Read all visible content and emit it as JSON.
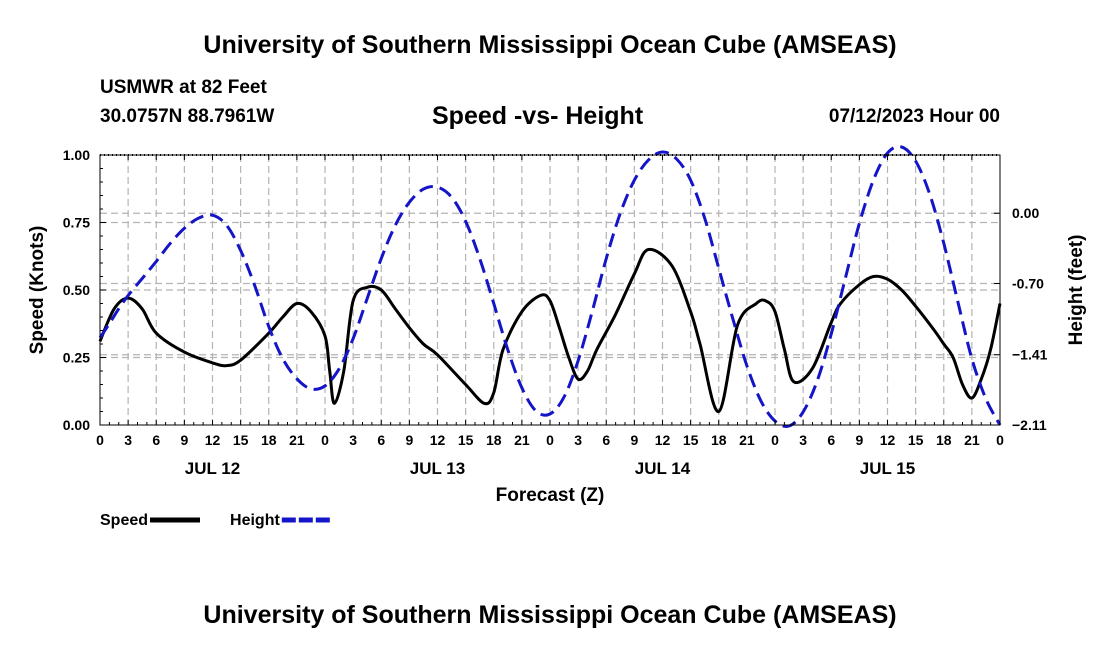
{
  "header": {
    "title": "University of Southern Mississippi Ocean Cube (AMSEAS)",
    "station": "USMWR at 82 Feet",
    "coords": "30.0757N  88.7961W",
    "subtitle": "Speed -vs- Height",
    "datetime": "07/12/2023 Hour 00"
  },
  "footer": {
    "title": "University of Southern Mississippi Ocean Cube (AMSEAS)"
  },
  "colors": {
    "speed": "#000000",
    "height": "#1414c8",
    "grid": "#b4b4b4"
  },
  "chart_data": {
    "type": "line",
    "xlabel": "Forecast (Z)",
    "ylabel_left": "Speed (Knots)",
    "ylabel_right": "Height (feet)",
    "x_range_hours": [
      0,
      96
    ],
    "x_tick_step_hours": 3,
    "x_tick_labels": [
      "0",
      "3",
      "6",
      "9",
      "12",
      "15",
      "18",
      "21",
      "0",
      "3",
      "6",
      "9",
      "12",
      "15",
      "18",
      "21",
      "0",
      "3",
      "6",
      "9",
      "12",
      "15",
      "18",
      "21",
      "0",
      "3",
      "6",
      "9",
      "12",
      "15",
      "18",
      "21",
      "0"
    ],
    "day_labels": [
      {
        "hour": 12,
        "label": "JUL 12"
      },
      {
        "hour": 36,
        "label": "JUL 13"
      },
      {
        "hour": 60,
        "label": "JUL 14"
      },
      {
        "hour": 84,
        "label": "JUL 15"
      }
    ],
    "ylim_left": [
      0,
      1.0
    ],
    "left_ticks": [
      {
        "value": 0.0,
        "label": "0.00"
      },
      {
        "value": 0.25,
        "label": "0.25"
      },
      {
        "value": 0.5,
        "label": "0.50"
      },
      {
        "value": 0.75,
        "label": "0.75"
      },
      {
        "value": 1.0,
        "label": "1.00"
      }
    ],
    "ylim_right": [
      -2.11,
      0.58
    ],
    "right_ticks": [
      {
        "value": 0.0,
        "label": "0.00"
      },
      {
        "value": -0.7,
        "label": "-0.70"
      },
      {
        "value": -1.41,
        "label": "−1.41"
      },
      {
        "value": -2.11,
        "label": "−2.11"
      }
    ],
    "grid": true,
    "series": [
      {
        "name": "Speed",
        "axis": "left",
        "style": "solid",
        "x": [
          0,
          1.5,
          3,
          4.5,
          6,
          9,
          12,
          13.5,
          15,
          18,
          19.5,
          21,
          22.5,
          24,
          24.5,
          25,
          26,
          27,
          28.5,
          30,
          31.5,
          33,
          34.5,
          36,
          39,
          41,
          42,
          43,
          45,
          47,
          48,
          49,
          50,
          51,
          52,
          53,
          55,
          57,
          58.5,
          61,
          63,
          64,
          66,
          68,
          70,
          71,
          72,
          73,
          74,
          76,
          78,
          79,
          81,
          82.5,
          84,
          85.5,
          87,
          89,
          90,
          91,
          92,
          93,
          94,
          95,
          96
        ],
        "values": [
          0.31,
          0.43,
          0.47,
          0.43,
          0.34,
          0.27,
          0.23,
          0.22,
          0.24,
          0.34,
          0.4,
          0.45,
          0.42,
          0.33,
          0.2,
          0.08,
          0.2,
          0.46,
          0.51,
          0.5,
          0.43,
          0.36,
          0.3,
          0.26,
          0.15,
          0.08,
          0.12,
          0.28,
          0.42,
          0.48,
          0.46,
          0.36,
          0.25,
          0.17,
          0.2,
          0.28,
          0.41,
          0.56,
          0.65,
          0.59,
          0.42,
          0.3,
          0.05,
          0.37,
          0.45,
          0.46,
          0.42,
          0.28,
          0.16,
          0.21,
          0.38,
          0.45,
          0.52,
          0.55,
          0.54,
          0.5,
          0.44,
          0.35,
          0.3,
          0.25,
          0.15,
          0.1,
          0.17,
          0.28,
          0.45
        ]
      },
      {
        "name": "Height",
        "axis": "right",
        "style": "dashed",
        "x": [
          0,
          1,
          2,
          3,
          4.5,
          6,
          7.5,
          9,
          10.5,
          12,
          13.5,
          15,
          16.5,
          18,
          19.5,
          21,
          22.5,
          24,
          25.5,
          27,
          28.5,
          30,
          31.5,
          33,
          34.5,
          36,
          37.5,
          39,
          40.5,
          42,
          43.5,
          45,
          46.5,
          48,
          49.5,
          51,
          52.5,
          54,
          55.5,
          57,
          58.5,
          60,
          61.5,
          63,
          64.5,
          66,
          67.5,
          69,
          70.5,
          72,
          73.5,
          75,
          76.5,
          78,
          79.5,
          81,
          82.5,
          84,
          85.5,
          87,
          88.5,
          90,
          91.5,
          93,
          94.5,
          96
        ],
        "values": [
          -1.24,
          -1.1,
          -0.95,
          -0.82,
          -0.65,
          -0.48,
          -0.3,
          -0.15,
          -0.05,
          -0.02,
          -0.12,
          -0.37,
          -0.72,
          -1.13,
          -1.45,
          -1.65,
          -1.75,
          -1.72,
          -1.55,
          -1.25,
          -0.85,
          -0.45,
          -0.12,
          0.11,
          0.24,
          0.26,
          0.16,
          -0.08,
          -0.45,
          -0.9,
          -1.36,
          -1.74,
          -1.97,
          -2.0,
          -1.83,
          -1.47,
          -0.98,
          -0.45,
          0.0,
          0.33,
          0.53,
          0.61,
          0.54,
          0.33,
          -0.05,
          -0.55,
          -1.05,
          -1.52,
          -1.87,
          -2.07,
          -2.12,
          -1.98,
          -1.67,
          -1.2,
          -0.65,
          -0.1,
          0.33,
          0.6,
          0.66,
          0.52,
          0.19,
          -0.3,
          -0.88,
          -1.45,
          -1.85,
          -2.11
        ]
      }
    ],
    "legend": [
      {
        "name": "Speed",
        "label": "Speed"
      },
      {
        "name": "Height",
        "label": "Height"
      }
    ],
    "legend_position": "bottom-left"
  }
}
